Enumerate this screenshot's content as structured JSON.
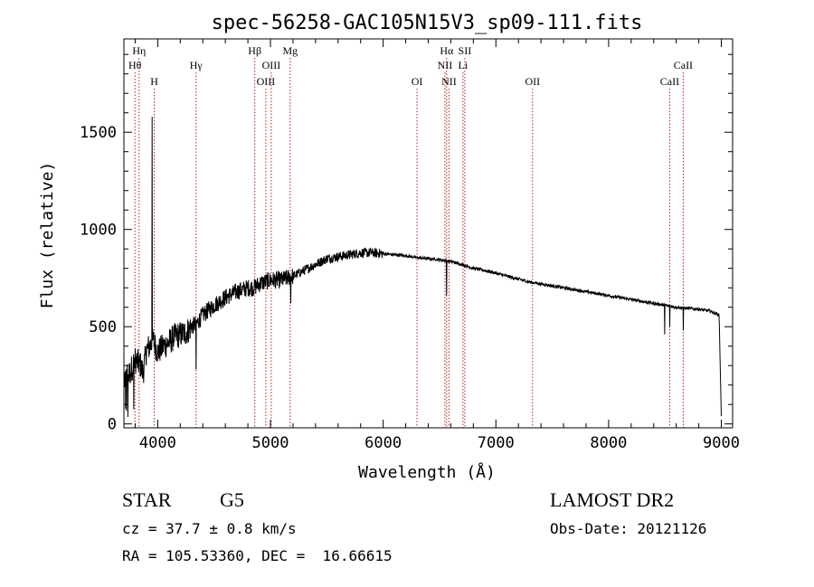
{
  "chart_data": {
    "type": "line",
    "title": "spec-56258-GAC105N15V3_sp09-111.fits",
    "xlabel": "Wavelength (Å)",
    "ylabel": "Flux (relative)",
    "xlim": [
      3700,
      9100
    ],
    "ylim": [
      -20,
      1980
    ],
    "xticks": [
      4000,
      5000,
      6000,
      7000,
      8000,
      9000
    ],
    "yticks": [
      0,
      500,
      1000,
      1500
    ],
    "grid": false,
    "series_color": "#000000",
    "line_color": "#b22222",
    "spectrum_knots": [
      [
        3700,
        230
      ],
      [
        3750,
        260
      ],
      [
        3800,
        330
      ],
      [
        3850,
        300
      ],
      [
        3870,
        260
      ],
      [
        3900,
        380
      ],
      [
        3930,
        400
      ],
      [
        3960,
        430
      ],
      [
        4000,
        370
      ],
      [
        4050,
        400
      ],
      [
        4100,
        420
      ],
      [
        4150,
        450
      ],
      [
        4200,
        460
      ],
      [
        4250,
        470
      ],
      [
        4300,
        500
      ],
      [
        4350,
        520
      ],
      [
        4400,
        560
      ],
      [
        4500,
        610
      ],
      [
        4600,
        650
      ],
      [
        4700,
        680
      ],
      [
        4800,
        700
      ],
      [
        4850,
        700
      ],
      [
        4900,
        720
      ],
      [
        5000,
        740
      ],
      [
        5100,
        740
      ],
      [
        5200,
        760
      ],
      [
        5300,
        790
      ],
      [
        5400,
        820
      ],
      [
        5500,
        850
      ],
      [
        5600,
        860
      ],
      [
        5700,
        870
      ],
      [
        5800,
        880
      ],
      [
        5900,
        880
      ],
      [
        6000,
        875
      ],
      [
        6100,
        870
      ],
      [
        6200,
        865
      ],
      [
        6300,
        855
      ],
      [
        6400,
        850
      ],
      [
        6500,
        845
      ],
      [
        6600,
        835
      ],
      [
        6700,
        820
      ],
      [
        6800,
        800
      ],
      [
        6900,
        790
      ],
      [
        7000,
        775
      ],
      [
        7100,
        760
      ],
      [
        7200,
        745
      ],
      [
        7300,
        730
      ],
      [
        7400,
        720
      ],
      [
        7500,
        710
      ],
      [
        7600,
        700
      ],
      [
        7700,
        690
      ],
      [
        7800,
        680
      ],
      [
        7900,
        670
      ],
      [
        8000,
        660
      ],
      [
        8100,
        650
      ],
      [
        8200,
        640
      ],
      [
        8300,
        630
      ],
      [
        8400,
        620
      ],
      [
        8500,
        610
      ],
      [
        8600,
        600
      ],
      [
        8700,
        595
      ],
      [
        8800,
        590
      ],
      [
        8900,
        580
      ],
      [
        8980,
        560
      ],
      [
        9000,
        40
      ]
    ],
    "spikes": [
      [
        3950,
        1580
      ],
      [
        4340,
        280
      ],
      [
        5180,
        620
      ],
      [
        6563,
        660
      ],
      [
        8498,
        460
      ],
      [
        8542,
        500
      ],
      [
        8662,
        480
      ]
    ],
    "lines": [
      {
        "label": "Hη",
        "wl": 3835,
        "row": 1
      },
      {
        "label": "Hθ",
        "wl": 3798,
        "row": 2
      },
      {
        "label": "H",
        "wl": 3969,
        "row": 3
      },
      {
        "label": "Hγ",
        "wl": 4340,
        "row": 2
      },
      {
        "label": "Hβ",
        "wl": 4861,
        "row": 1
      },
      {
        "label": "OIII",
        "wl": 5007,
        "row": 2
      },
      {
        "label": "OIII",
        "wl": 4959,
        "row": 3
      },
      {
        "label": "Mg",
        "wl": 5175,
        "row": 1
      },
      {
        "label": "OI",
        "wl": 6300,
        "row": 3
      },
      {
        "label": "Hα",
        "wl": 6563,
        "row": 1
      },
      {
        "label": "NII",
        "wl": 6548,
        "row": 2
      },
      {
        "label": "Li",
        "wl": 6708,
        "row": 2
      },
      {
        "label": "NII",
        "wl": 6584,
        "row": 3
      },
      {
        "label": "OII",
        "wl": 7325,
        "row": 3
      },
      {
        "label": "SII",
        "wl": 6724,
        "row": 1
      },
      {
        "label": "CaII",
        "wl": 8662,
        "row": 2
      },
      {
        "label": "CaII",
        "wl": 8542,
        "row": 3
      }
    ]
  },
  "footer": {
    "object_class": "STAR",
    "subclass": "G5",
    "survey": "LAMOST DR2",
    "cz": "cz = 37.7 ± 0.8 km/s",
    "obs_date": "Obs-Date: 20121126",
    "coords": "RA = 105.53360, DEC =  16.66615"
  }
}
